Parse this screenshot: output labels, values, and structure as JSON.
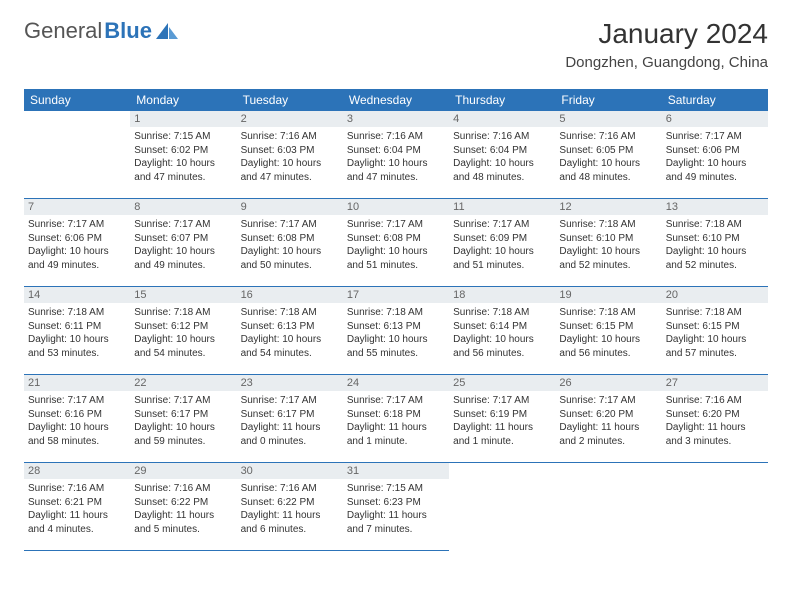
{
  "logo": {
    "text1": "General",
    "text2": "Blue"
  },
  "title": "January 2024",
  "location": "Dongzhen, Guangdong, China",
  "dayNames": [
    "Sunday",
    "Monday",
    "Tuesday",
    "Wednesday",
    "Thursday",
    "Friday",
    "Saturday"
  ],
  "colors": {
    "headerBg": "#2c73b8",
    "dayNumBg": "#e9edf0",
    "border": "#2c73b8",
    "text": "#333333"
  },
  "weeks": [
    [
      {
        "n": "",
        "sr": "",
        "ss": "",
        "dl": ""
      },
      {
        "n": "1",
        "sr": "Sunrise: 7:15 AM",
        "ss": "Sunset: 6:02 PM",
        "dl": "Daylight: 10 hours and 47 minutes."
      },
      {
        "n": "2",
        "sr": "Sunrise: 7:16 AM",
        "ss": "Sunset: 6:03 PM",
        "dl": "Daylight: 10 hours and 47 minutes."
      },
      {
        "n": "3",
        "sr": "Sunrise: 7:16 AM",
        "ss": "Sunset: 6:04 PM",
        "dl": "Daylight: 10 hours and 47 minutes."
      },
      {
        "n": "4",
        "sr": "Sunrise: 7:16 AM",
        "ss": "Sunset: 6:04 PM",
        "dl": "Daylight: 10 hours and 48 minutes."
      },
      {
        "n": "5",
        "sr": "Sunrise: 7:16 AM",
        "ss": "Sunset: 6:05 PM",
        "dl": "Daylight: 10 hours and 48 minutes."
      },
      {
        "n": "6",
        "sr": "Sunrise: 7:17 AM",
        "ss": "Sunset: 6:06 PM",
        "dl": "Daylight: 10 hours and 49 minutes."
      }
    ],
    [
      {
        "n": "7",
        "sr": "Sunrise: 7:17 AM",
        "ss": "Sunset: 6:06 PM",
        "dl": "Daylight: 10 hours and 49 minutes."
      },
      {
        "n": "8",
        "sr": "Sunrise: 7:17 AM",
        "ss": "Sunset: 6:07 PM",
        "dl": "Daylight: 10 hours and 49 minutes."
      },
      {
        "n": "9",
        "sr": "Sunrise: 7:17 AM",
        "ss": "Sunset: 6:08 PM",
        "dl": "Daylight: 10 hours and 50 minutes."
      },
      {
        "n": "10",
        "sr": "Sunrise: 7:17 AM",
        "ss": "Sunset: 6:08 PM",
        "dl": "Daylight: 10 hours and 51 minutes."
      },
      {
        "n": "11",
        "sr": "Sunrise: 7:17 AM",
        "ss": "Sunset: 6:09 PM",
        "dl": "Daylight: 10 hours and 51 minutes."
      },
      {
        "n": "12",
        "sr": "Sunrise: 7:18 AM",
        "ss": "Sunset: 6:10 PM",
        "dl": "Daylight: 10 hours and 52 minutes."
      },
      {
        "n": "13",
        "sr": "Sunrise: 7:18 AM",
        "ss": "Sunset: 6:10 PM",
        "dl": "Daylight: 10 hours and 52 minutes."
      }
    ],
    [
      {
        "n": "14",
        "sr": "Sunrise: 7:18 AM",
        "ss": "Sunset: 6:11 PM",
        "dl": "Daylight: 10 hours and 53 minutes."
      },
      {
        "n": "15",
        "sr": "Sunrise: 7:18 AM",
        "ss": "Sunset: 6:12 PM",
        "dl": "Daylight: 10 hours and 54 minutes."
      },
      {
        "n": "16",
        "sr": "Sunrise: 7:18 AM",
        "ss": "Sunset: 6:13 PM",
        "dl": "Daylight: 10 hours and 54 minutes."
      },
      {
        "n": "17",
        "sr": "Sunrise: 7:18 AM",
        "ss": "Sunset: 6:13 PM",
        "dl": "Daylight: 10 hours and 55 minutes."
      },
      {
        "n": "18",
        "sr": "Sunrise: 7:18 AM",
        "ss": "Sunset: 6:14 PM",
        "dl": "Daylight: 10 hours and 56 minutes."
      },
      {
        "n": "19",
        "sr": "Sunrise: 7:18 AM",
        "ss": "Sunset: 6:15 PM",
        "dl": "Daylight: 10 hours and 56 minutes."
      },
      {
        "n": "20",
        "sr": "Sunrise: 7:18 AM",
        "ss": "Sunset: 6:15 PM",
        "dl": "Daylight: 10 hours and 57 minutes."
      }
    ],
    [
      {
        "n": "21",
        "sr": "Sunrise: 7:17 AM",
        "ss": "Sunset: 6:16 PM",
        "dl": "Daylight: 10 hours and 58 minutes."
      },
      {
        "n": "22",
        "sr": "Sunrise: 7:17 AM",
        "ss": "Sunset: 6:17 PM",
        "dl": "Daylight: 10 hours and 59 minutes."
      },
      {
        "n": "23",
        "sr": "Sunrise: 7:17 AM",
        "ss": "Sunset: 6:17 PM",
        "dl": "Daylight: 11 hours and 0 minutes."
      },
      {
        "n": "24",
        "sr": "Sunrise: 7:17 AM",
        "ss": "Sunset: 6:18 PM",
        "dl": "Daylight: 11 hours and 1 minute."
      },
      {
        "n": "25",
        "sr": "Sunrise: 7:17 AM",
        "ss": "Sunset: 6:19 PM",
        "dl": "Daylight: 11 hours and 1 minute."
      },
      {
        "n": "26",
        "sr": "Sunrise: 7:17 AM",
        "ss": "Sunset: 6:20 PM",
        "dl": "Daylight: 11 hours and 2 minutes."
      },
      {
        "n": "27",
        "sr": "Sunrise: 7:16 AM",
        "ss": "Sunset: 6:20 PM",
        "dl": "Daylight: 11 hours and 3 minutes."
      }
    ],
    [
      {
        "n": "28",
        "sr": "Sunrise: 7:16 AM",
        "ss": "Sunset: 6:21 PM",
        "dl": "Daylight: 11 hours and 4 minutes."
      },
      {
        "n": "29",
        "sr": "Sunrise: 7:16 AM",
        "ss": "Sunset: 6:22 PM",
        "dl": "Daylight: 11 hours and 5 minutes."
      },
      {
        "n": "30",
        "sr": "Sunrise: 7:16 AM",
        "ss": "Sunset: 6:22 PM",
        "dl": "Daylight: 11 hours and 6 minutes."
      },
      {
        "n": "31",
        "sr": "Sunrise: 7:15 AM",
        "ss": "Sunset: 6:23 PM",
        "dl": "Daylight: 11 hours and 7 minutes."
      },
      {
        "n": "",
        "sr": "",
        "ss": "",
        "dl": ""
      },
      {
        "n": "",
        "sr": "",
        "ss": "",
        "dl": ""
      },
      {
        "n": "",
        "sr": "",
        "ss": "",
        "dl": ""
      }
    ]
  ]
}
